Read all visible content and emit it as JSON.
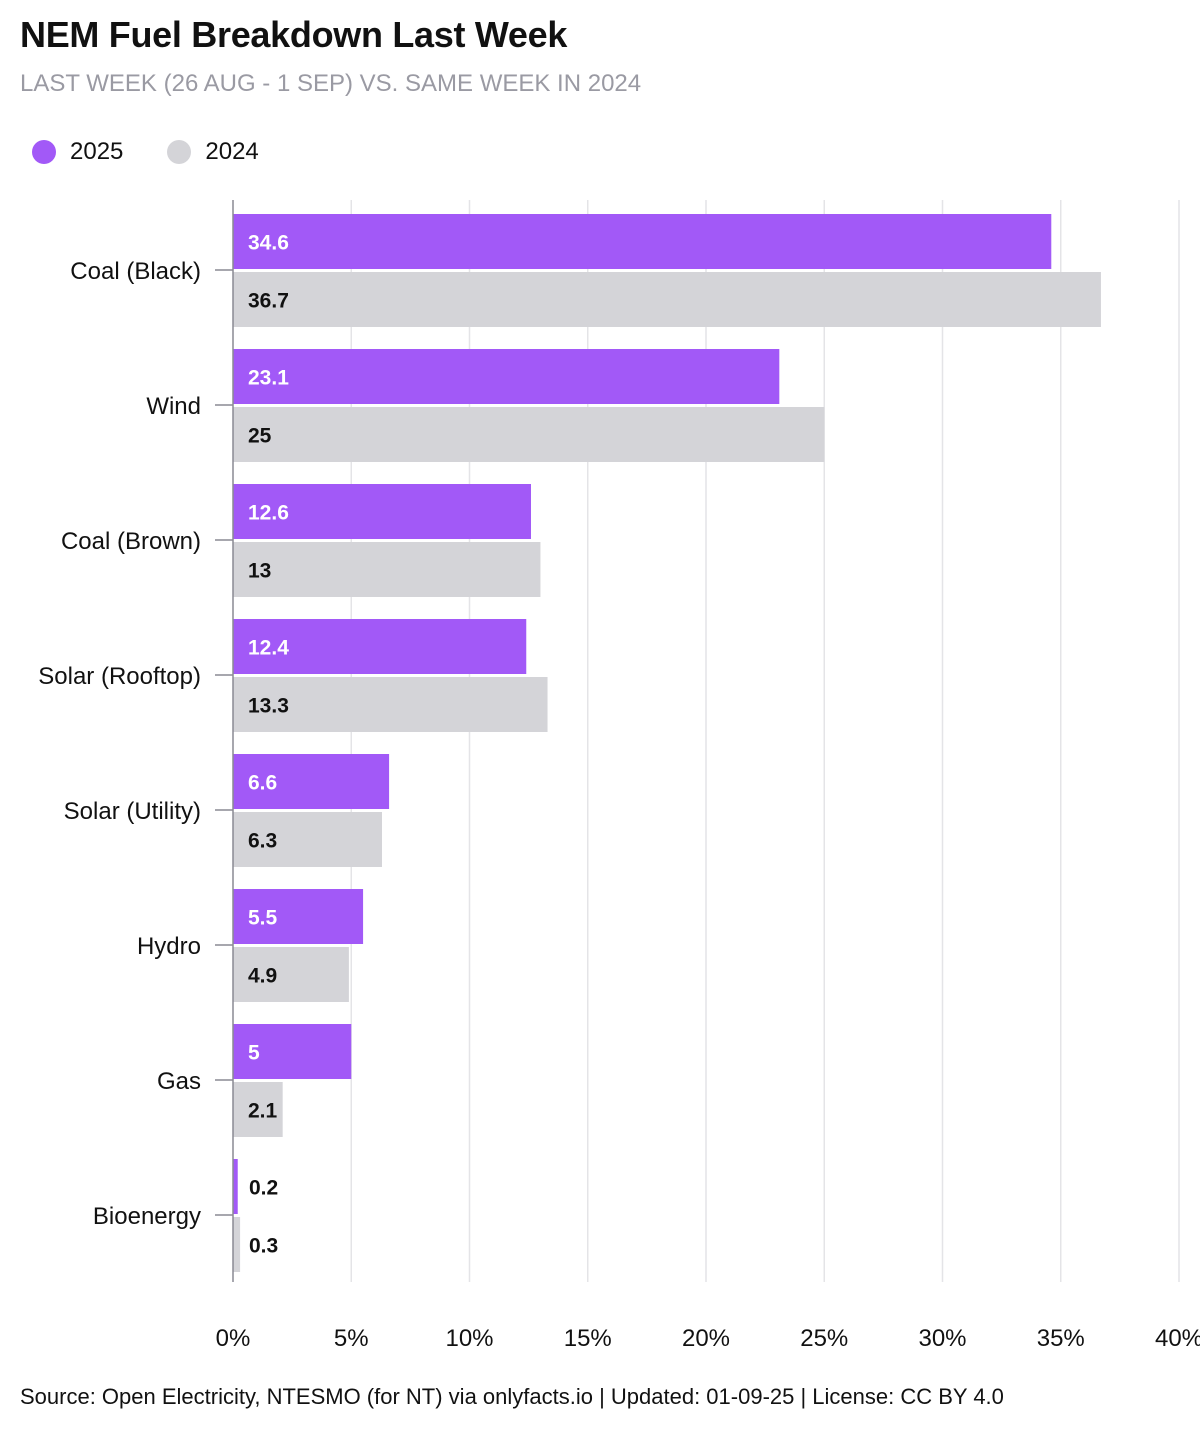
{
  "colors": {
    "s2025": "#a259f7",
    "s2024": "#d4d4d8",
    "grid": "#e4e4e7",
    "axis": "#8a8a93"
  },
  "chart_data": {
    "type": "bar",
    "orientation": "horizontal",
    "title": "NEM Fuel Breakdown Last Week",
    "subtitle": "LAST WEEK (26 AUG - 1 SEP) VS. SAME WEEK IN 2024",
    "categories": [
      "Coal (Black)",
      "Wind",
      "Coal (Brown)",
      "Solar (Rooftop)",
      "Solar (Utility)",
      "Hydro",
      "Gas",
      "Bioenergy"
    ],
    "series": [
      {
        "name": "2025",
        "values": [
          34.6,
          23.1,
          12.6,
          12.4,
          6.6,
          5.5,
          5,
          0.2
        ]
      },
      {
        "name": "2024",
        "values": [
          36.7,
          25,
          13,
          13.3,
          6.3,
          4.9,
          2.1,
          0.3
        ]
      }
    ],
    "xlim": [
      0,
      40
    ],
    "xticks": [
      0,
      5,
      10,
      15,
      20,
      25,
      30,
      35,
      40
    ],
    "xtick_labels": [
      "0%",
      "5%",
      "10%",
      "15%",
      "20%",
      "25%",
      "30%",
      "35%",
      "40%"
    ],
    "grid": true,
    "legend_position": "top-left"
  },
  "source": "Source: Open Electricity, NTESMO (for NT) via onlyfacts.io | Updated: 01-09-25 | License: CC BY 4.0"
}
